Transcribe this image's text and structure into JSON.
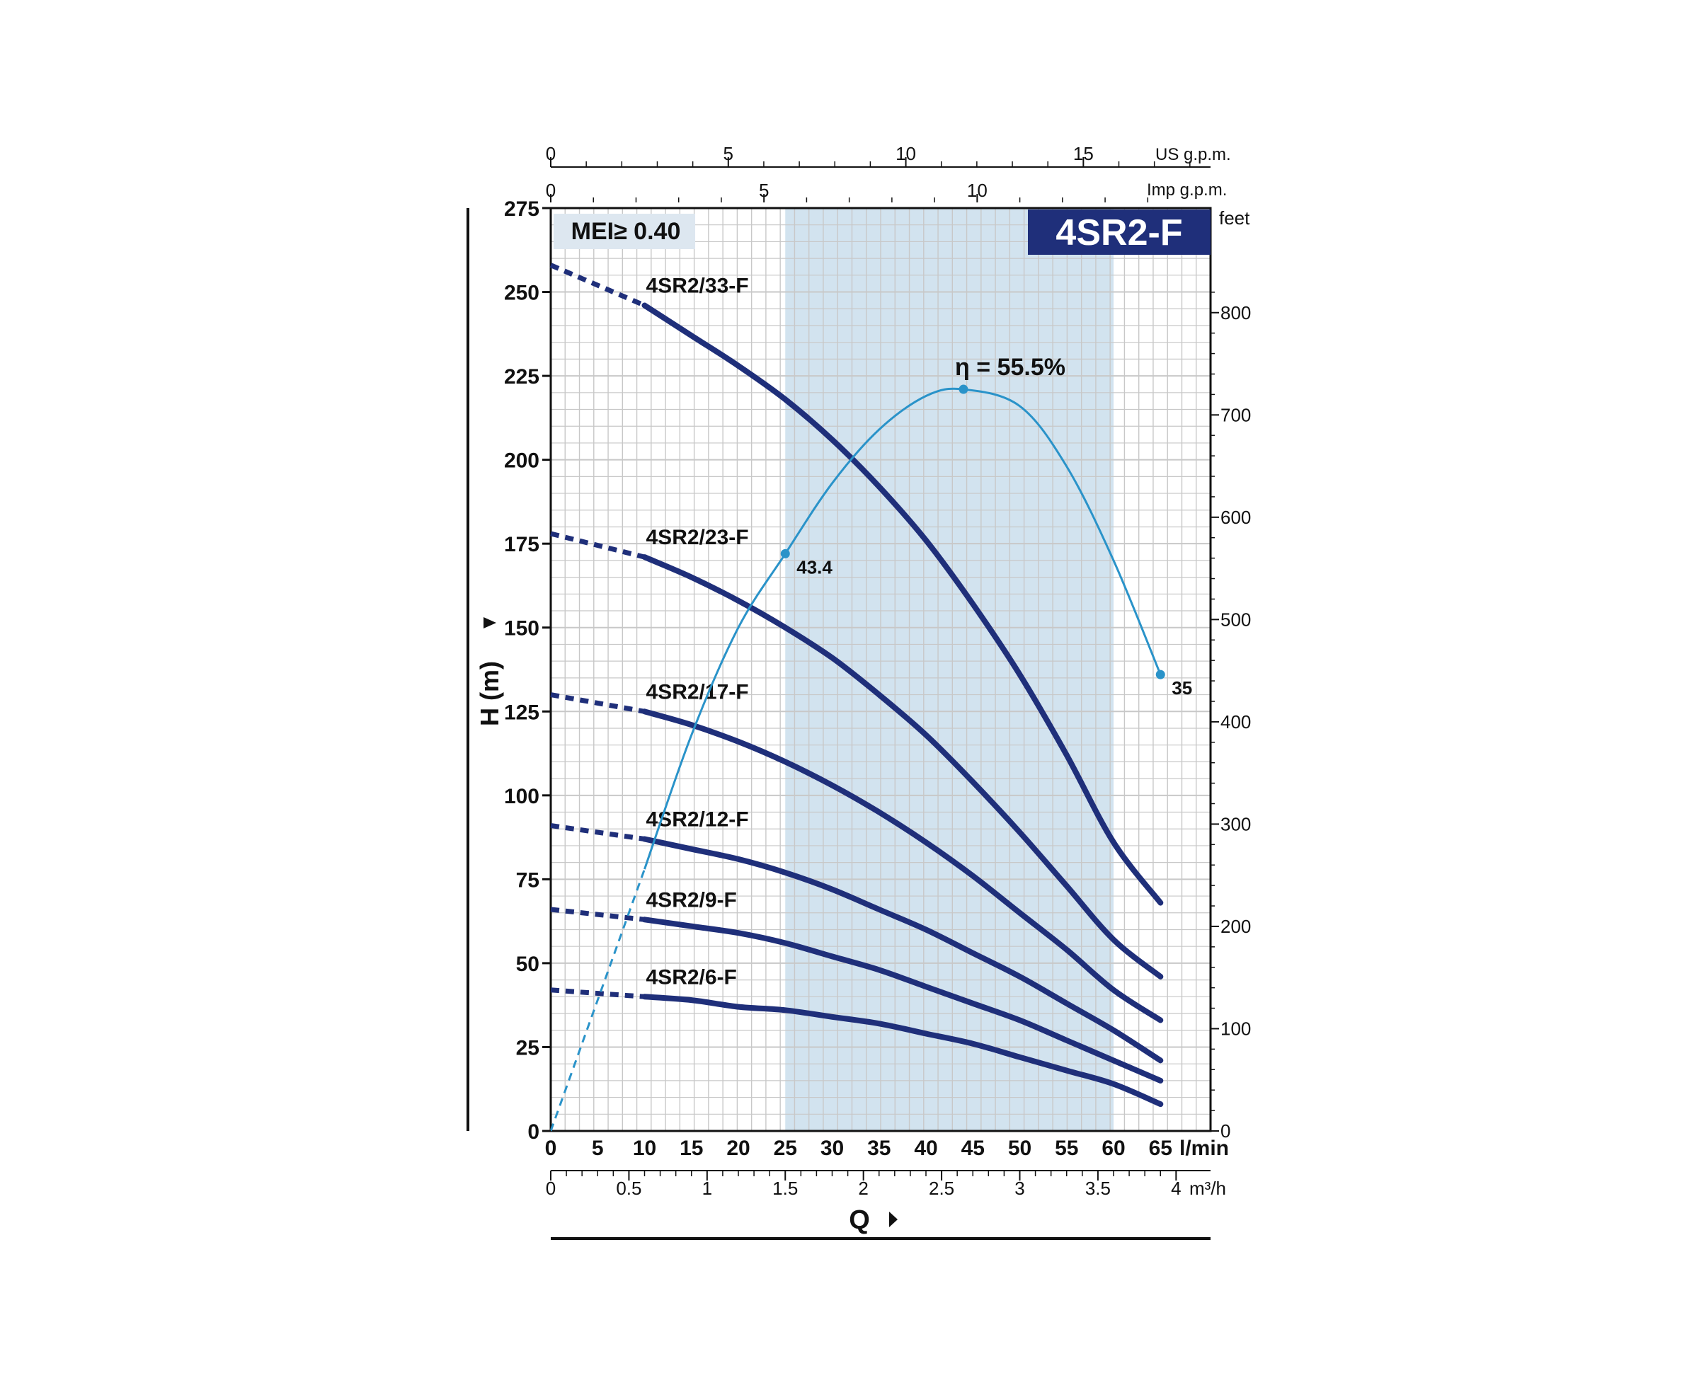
{
  "chart_data": {
    "type": "line",
    "title": "4SR2-F",
    "badge": "MEI≥ 0.40",
    "colors": {
      "curve": "#1f2f7a",
      "efficiency": "#2a93c9",
      "band": "#d2e3ef",
      "title_bg": "#1f2f7a",
      "badge_bg": "#dde7f0",
      "grid": "#c8c8c8"
    },
    "axes": {
      "left": {
        "label": "H (m)",
        "min": 0,
        "max": 275,
        "ticks": [
          "0",
          "25",
          "50",
          "75",
          "100",
          "125",
          "150",
          "175",
          "200",
          "225",
          "250",
          "275"
        ]
      },
      "right": {
        "unit": "feet",
        "ticks": [
          "0",
          "100",
          "200",
          "300",
          "400",
          "500",
          "600",
          "700",
          "800"
        ]
      },
      "bottom_lmin": {
        "unit": "l/min",
        "min": 0,
        "max": 70,
        "ticks": [
          "0",
          "5",
          "10",
          "15",
          "20",
          "25",
          "30",
          "35",
          "40",
          "45",
          "50",
          "55",
          "60",
          "65"
        ]
      },
      "bottom_m3h": {
        "unit": "m³/h",
        "label": "Q",
        "ticks": [
          "0",
          "0.5",
          "1",
          "1.5",
          "2",
          "2.5",
          "3",
          "3.5",
          "4"
        ]
      },
      "top_usgpm": {
        "unit": "US g.p.m.",
        "ticks": [
          "0",
          "5",
          "10",
          "15"
        ]
      },
      "top_impgpm": {
        "unit": "Imp g.p.m.",
        "ticks": [
          "0",
          "5",
          "10"
        ]
      }
    },
    "band": {
      "from": 25,
      "to": 60
    },
    "series": [
      {
        "name": "4SR2/33-F",
        "dashed": [
          [
            0,
            258
          ],
          [
            10,
            246
          ]
        ],
        "values": [
          [
            10,
            246
          ],
          [
            15,
            237
          ],
          [
            20,
            228
          ],
          [
            25,
            218
          ],
          [
            30,
            206
          ],
          [
            35,
            192
          ],
          [
            40,
            176
          ],
          [
            45,
            157
          ],
          [
            50,
            136
          ],
          [
            55,
            112
          ],
          [
            60,
            86
          ],
          [
            65,
            68
          ]
        ]
      },
      {
        "name": "4SR2/23-F",
        "dashed": [
          [
            0,
            178
          ],
          [
            10,
            171
          ]
        ],
        "values": [
          [
            10,
            171
          ],
          [
            15,
            165
          ],
          [
            20,
            158
          ],
          [
            25,
            150
          ],
          [
            30,
            141
          ],
          [
            35,
            130
          ],
          [
            40,
            118
          ],
          [
            45,
            104
          ],
          [
            50,
            89
          ],
          [
            55,
            73
          ],
          [
            60,
            57
          ],
          [
            65,
            46
          ]
        ]
      },
      {
        "name": "4SR2/17-F",
        "dashed": [
          [
            0,
            130
          ],
          [
            10,
            125
          ]
        ],
        "values": [
          [
            10,
            125
          ],
          [
            15,
            121
          ],
          [
            20,
            116
          ],
          [
            25,
            110
          ],
          [
            30,
            103
          ],
          [
            35,
            95
          ],
          [
            40,
            86
          ],
          [
            45,
            76
          ],
          [
            50,
            65
          ],
          [
            55,
            54
          ],
          [
            60,
            42
          ],
          [
            65,
            33
          ]
        ]
      },
      {
        "name": "4SR2/12-F",
        "dashed": [
          [
            0,
            91
          ],
          [
            10,
            87
          ]
        ],
        "values": [
          [
            10,
            87
          ],
          [
            15,
            84
          ],
          [
            20,
            81
          ],
          [
            25,
            77
          ],
          [
            30,
            72
          ],
          [
            35,
            66
          ],
          [
            40,
            60
          ],
          [
            45,
            53
          ],
          [
            50,
            46
          ],
          [
            55,
            38
          ],
          [
            60,
            30
          ],
          [
            65,
            21
          ]
        ]
      },
      {
        "name": "4SR2/9-F",
        "dashed": [
          [
            0,
            66
          ],
          [
            10,
            63
          ]
        ],
        "values": [
          [
            10,
            63
          ],
          [
            15,
            61
          ],
          [
            20,
            59
          ],
          [
            25,
            56
          ],
          [
            30,
            52
          ],
          [
            35,
            48
          ],
          [
            40,
            43
          ],
          [
            45,
            38
          ],
          [
            50,
            33
          ],
          [
            55,
            27
          ],
          [
            60,
            21
          ],
          [
            65,
            15
          ]
        ]
      },
      {
        "name": "4SR2/6-F",
        "dashed": [
          [
            0,
            42
          ],
          [
            10,
            40
          ]
        ],
        "values": [
          [
            10,
            40
          ],
          [
            15,
            39
          ],
          [
            20,
            37
          ],
          [
            25,
            36
          ],
          [
            30,
            34
          ],
          [
            35,
            32
          ],
          [
            40,
            29
          ],
          [
            45,
            26
          ],
          [
            50,
            22
          ],
          [
            55,
            18
          ],
          [
            60,
            14
          ],
          [
            65,
            8
          ]
        ]
      }
    ],
    "efficiency": {
      "label": "η = 55.5%",
      "dashed": [
        [
          0,
          0
        ],
        [
          10,
          78
        ]
      ],
      "values": [
        [
          10,
          78
        ],
        [
          15,
          118
        ],
        [
          20,
          150
        ],
        [
          25,
          172
        ],
        [
          30,
          193
        ],
        [
          35,
          209
        ],
        [
          40,
          219
        ],
        [
          44,
          221
        ],
        [
          50,
          216
        ],
        [
          55,
          198
        ],
        [
          60,
          170
        ],
        [
          65,
          136
        ]
      ],
      "points": [
        {
          "x": 25,
          "y": 172,
          "label": "43.4"
        },
        {
          "x": 44,
          "y": 221,
          "label": ""
        },
        {
          "x": 65,
          "y": 136,
          "label": "35"
        }
      ]
    }
  }
}
